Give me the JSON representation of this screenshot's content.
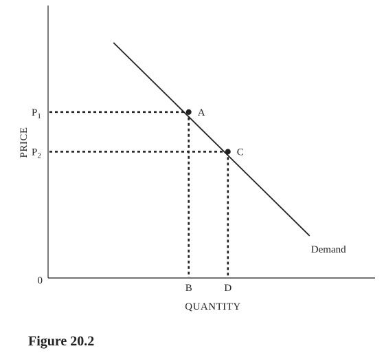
{
  "chart_data": {
    "type": "line",
    "ylabel": "PRICE",
    "xlabel": "QUANTITY",
    "origin_label": "0",
    "price_levels": [
      {
        "label": "P",
        "subscript": "1",
        "value": 0.67
      },
      {
        "label": "P",
        "subscript": "2",
        "value": 0.51
      }
    ],
    "quantity_levels": [
      {
        "label": "B",
        "value": 0.43
      },
      {
        "label": "D",
        "value": 0.55
      }
    ],
    "series": [
      {
        "name": "Demand",
        "x": [
          0.2,
          0.8
        ],
        "y": [
          0.95,
          0.17
        ]
      }
    ],
    "points": [
      {
        "label": "A",
        "x": 0.43,
        "y": 0.67
      },
      {
        "label": "C",
        "x": 0.55,
        "y": 0.51
      }
    ],
    "xlim": [
      0,
      1
    ],
    "ylim": [
      0,
      1.1
    ],
    "grid": false,
    "legend": "none"
  },
  "caption": "Figure 20.2",
  "colors": {
    "ink": "#222222"
  }
}
